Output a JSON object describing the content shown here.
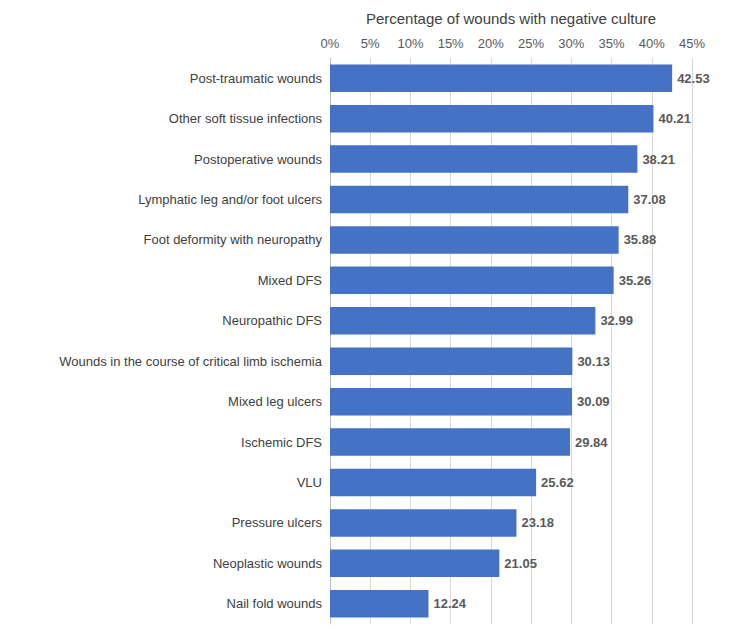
{
  "chart_data": {
    "type": "bar",
    "orientation": "horizontal",
    "xlabel": "Percentage of wounds with negative culture",
    "categories": [
      "Post-traumatic wounds",
      "Other soft tissue infections",
      "Postoperative wounds",
      "Lymphatic leg and/or foot ulcers",
      "Foot deformity with neuropathy",
      "Mixed DFS",
      "Neuropathic DFS",
      "Wounds in the course of critical limb ischemia",
      "Mixed leg ulcers",
      "Ischemic DFS",
      "VLU",
      "Pressure ulcers",
      "Neoplastic wounds",
      "Nail fold wounds"
    ],
    "values": [
      42.53,
      40.21,
      38.21,
      37.08,
      35.88,
      35.26,
      32.99,
      30.13,
      30.09,
      29.84,
      25.62,
      23.18,
      21.05,
      12.24
    ],
    "color": "#4472c4",
    "xlim": [
      0,
      45
    ],
    "xticks": [
      {
        "value": 0,
        "label": "0%"
      },
      {
        "value": 5,
        "label": "5%"
      },
      {
        "value": 10,
        "label": "10%"
      },
      {
        "value": 15,
        "label": "15%"
      },
      {
        "value": 20,
        "label": "20%"
      },
      {
        "value": 25,
        "label": "25%"
      },
      {
        "value": 30,
        "label": "30%"
      },
      {
        "value": 35,
        "label": "35%"
      },
      {
        "value": 40,
        "label": "40%"
      },
      {
        "value": 45,
        "label": "45%"
      }
    ],
    "grid": true,
    "data_labels": true
  }
}
